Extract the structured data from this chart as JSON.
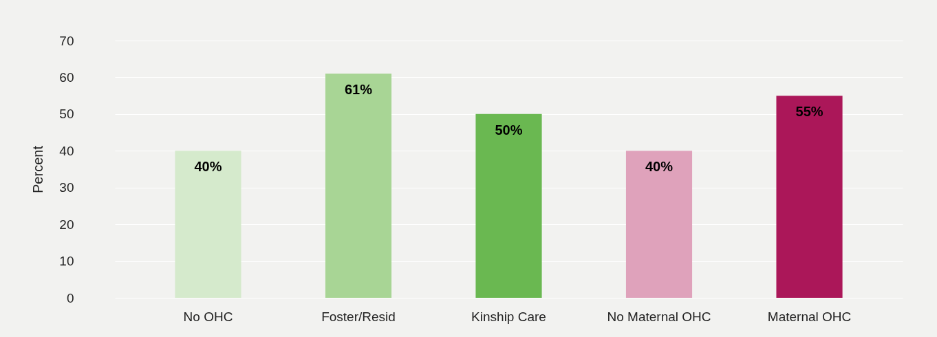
{
  "chart_data": {
    "type": "bar",
    "ylabel": "Percent",
    "categories": [
      "No OHC",
      "Foster/Resid",
      "Kinship Care",
      "No Maternal OHC",
      "Maternal OHC"
    ],
    "values": [
      40,
      61,
      50,
      40,
      55
    ],
    "colors": [
      "#d5eacc",
      "#a8d595",
      "#6ab851",
      "#dfa2bb",
      "#ab1759"
    ],
    "value_labels": [
      "40%",
      "61%",
      "50%",
      "40%",
      "55%"
    ],
    "ylim": [
      0,
      70
    ],
    "yticks": [
      0,
      10,
      20,
      30,
      40,
      50,
      60,
      70
    ],
    "grid": "y"
  }
}
